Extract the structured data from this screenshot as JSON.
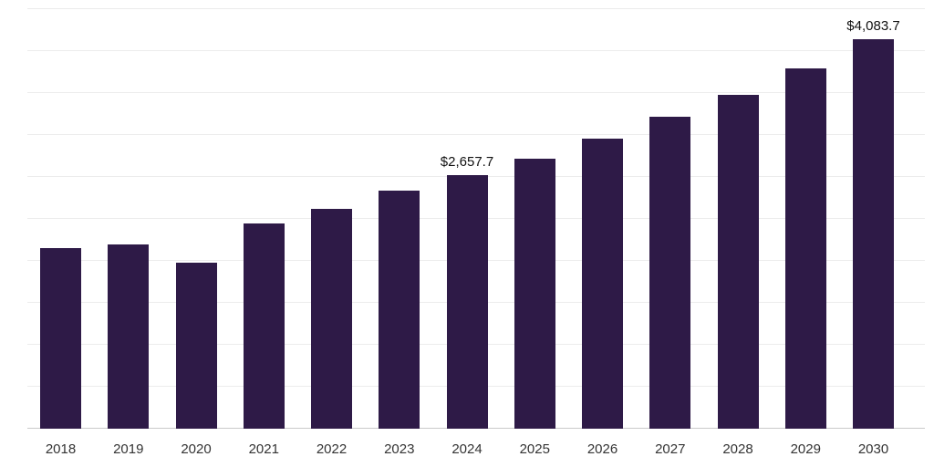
{
  "chart_data": {
    "type": "bar",
    "title": "",
    "xlabel": "",
    "ylabel": "",
    "categories": [
      "2018",
      "2019",
      "2020",
      "2021",
      "2022",
      "2023",
      "2024",
      "2025",
      "2026",
      "2027",
      "2028",
      "2029",
      "2030"
    ],
    "values": [
      1890,
      1930,
      1740,
      2150,
      2310,
      2500,
      2657.7,
      2830,
      3040,
      3270,
      3500,
      3780,
      4083.7
    ],
    "ylim": [
      0,
      4400
    ],
    "grid_divisions": 10,
    "grid": "horizontal",
    "legend": "none",
    "bar_color": "#2e1a47",
    "gridline_color": "#ececec",
    "axis_line_color": "#c9c9c9",
    "label_color": "#333333",
    "annotations": [
      {
        "category": "2024",
        "text": "$2,657.7"
      },
      {
        "category": "2030",
        "text": "$4,083.7"
      }
    ]
  }
}
